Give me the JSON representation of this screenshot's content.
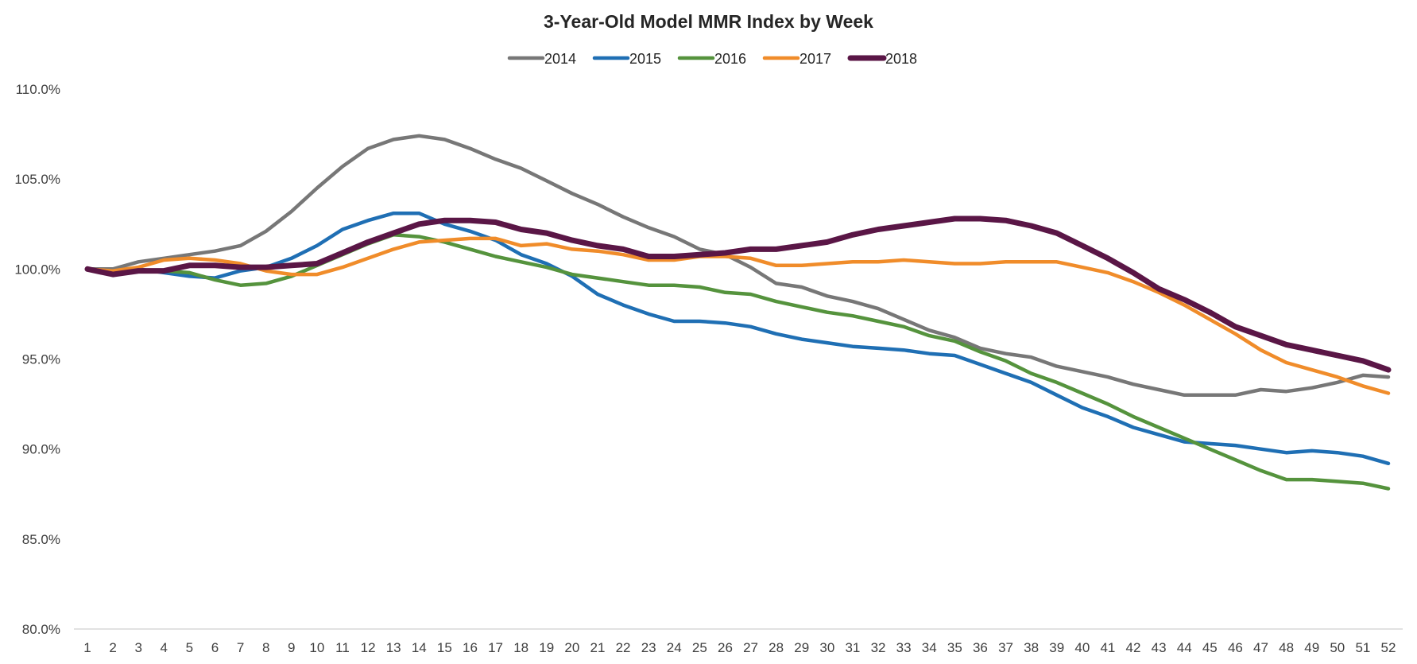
{
  "chart_data": {
    "type": "line",
    "title": "3-Year-Old Model MMR Index by Week",
    "xlabel": "",
    "ylabel": "",
    "ylim": [
      80,
      110
    ],
    "y_ticks": [
      "80.0%",
      "85.0%",
      "90.0%",
      "95.0%",
      "100.0%",
      "105.0%",
      "110.0%"
    ],
    "y_tick_values": [
      80,
      85,
      90,
      95,
      100,
      105,
      110
    ],
    "x": [
      1,
      2,
      3,
      4,
      5,
      6,
      7,
      8,
      9,
      10,
      11,
      12,
      13,
      14,
      15,
      16,
      17,
      18,
      19,
      20,
      21,
      22,
      23,
      24,
      25,
      26,
      27,
      28,
      29,
      30,
      31,
      32,
      33,
      34,
      35,
      36,
      37,
      38,
      39,
      40,
      41,
      42,
      43,
      44,
      45,
      46,
      47,
      48,
      49,
      50,
      51,
      52
    ],
    "grid": false,
    "legend_position": "top-center",
    "series": [
      {
        "name": "2014",
        "color": "#777777",
        "values": [
          100.0,
          100.0,
          100.4,
          100.6,
          100.8,
          101.0,
          101.3,
          102.1,
          103.2,
          104.5,
          105.7,
          106.7,
          107.2,
          107.4,
          107.2,
          106.7,
          106.1,
          105.6,
          104.9,
          104.2,
          103.6,
          102.9,
          102.3,
          101.8,
          101.1,
          100.8,
          100.1,
          99.2,
          99.0,
          98.5,
          98.2,
          97.8,
          97.2,
          96.6,
          96.2,
          95.6,
          95.3,
          95.1,
          94.6,
          94.3,
          94.0,
          93.6,
          93.3,
          93.0,
          93.0,
          93.0,
          93.3,
          93.2,
          93.4,
          93.7,
          94.1,
          94.0
        ]
      },
      {
        "name": "2015",
        "color": "#1F6FB4",
        "values": [
          100.0,
          99.9,
          100.0,
          99.8,
          99.6,
          99.5,
          99.9,
          100.1,
          100.6,
          101.3,
          102.2,
          102.7,
          103.1,
          103.1,
          102.5,
          102.1,
          101.6,
          100.8,
          100.3,
          99.6,
          98.6,
          98.0,
          97.5,
          97.1,
          97.1,
          97.0,
          96.8,
          96.4,
          96.1,
          95.9,
          95.7,
          95.6,
          95.5,
          95.3,
          95.2,
          94.7,
          94.2,
          93.7,
          93.0,
          92.3,
          91.8,
          91.2,
          90.8,
          90.4,
          90.3,
          90.2,
          90.0,
          89.8,
          89.9,
          89.8,
          89.6,
          89.2
        ]
      },
      {
        "name": "2016",
        "color": "#55933D",
        "values": [
          100.0,
          99.8,
          99.9,
          99.9,
          99.8,
          99.4,
          99.1,
          99.2,
          99.6,
          100.2,
          100.8,
          101.4,
          101.9,
          101.8,
          101.5,
          101.1,
          100.7,
          100.4,
          100.1,
          99.7,
          99.5,
          99.3,
          99.1,
          99.1,
          99.0,
          98.7,
          98.6,
          98.2,
          97.9,
          97.6,
          97.4,
          97.1,
          96.8,
          96.3,
          96.0,
          95.4,
          94.9,
          94.2,
          93.7,
          93.1,
          92.5,
          91.8,
          91.2,
          90.6,
          90.0,
          89.4,
          88.8,
          88.3,
          88.3,
          88.2,
          88.1,
          87.8
        ]
      },
      {
        "name": "2017",
        "color": "#F08C2A",
        "values": [
          100.0,
          99.9,
          100.1,
          100.5,
          100.6,
          100.5,
          100.3,
          99.9,
          99.7,
          99.7,
          100.1,
          100.6,
          101.1,
          101.5,
          101.6,
          101.7,
          101.7,
          101.3,
          101.4,
          101.1,
          101.0,
          100.8,
          100.5,
          100.5,
          100.7,
          100.7,
          100.6,
          100.2,
          100.2,
          100.3,
          100.4,
          100.4,
          100.5,
          100.4,
          100.3,
          100.3,
          100.4,
          100.4,
          100.4,
          100.1,
          99.8,
          99.3,
          98.7,
          98.0,
          97.2,
          96.4,
          95.5,
          94.8,
          94.4,
          94.0,
          93.5,
          93.1
        ]
      },
      {
        "name": "2018",
        "color": "#5A1646",
        "values": [
          100.0,
          99.7,
          99.9,
          99.9,
          100.2,
          100.2,
          100.1,
          100.1,
          100.2,
          100.3,
          100.9,
          101.5,
          102.0,
          102.5,
          102.7,
          102.7,
          102.6,
          102.2,
          102.0,
          101.6,
          101.3,
          101.1,
          100.7,
          100.7,
          100.8,
          100.9,
          101.1,
          101.1,
          101.3,
          101.5,
          101.9,
          102.2,
          102.4,
          102.6,
          102.8,
          102.8,
          102.7,
          102.4,
          102.0,
          101.3,
          100.6,
          99.8,
          98.9,
          98.3,
          97.6,
          96.8,
          96.3,
          95.8,
          95.5,
          95.2,
          94.9,
          94.4
        ]
      }
    ]
  }
}
